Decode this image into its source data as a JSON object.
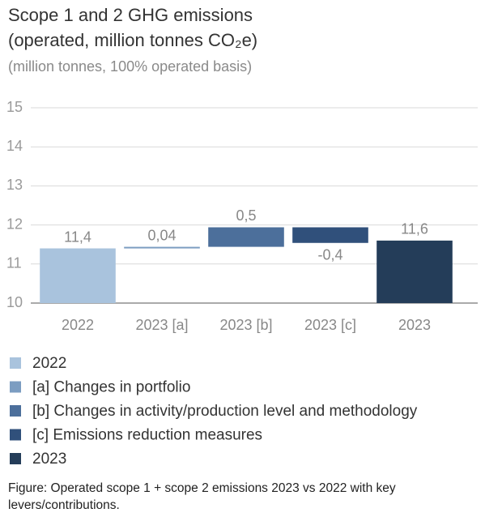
{
  "chart_data": {
    "type": "waterfall",
    "title": [
      "Scope 1 and 2 GHG emissions",
      "(operated, million tonnes CO₂e)"
    ],
    "subtitle": "(million tonnes, 100% operated basis)",
    "categories": [
      "2022",
      "2023 [a]",
      "2023 [b]",
      "2023 [c]",
      "2023"
    ],
    "values": [
      11.4,
      0.04,
      0.5,
      -0.4,
      11.6
    ],
    "value_labels": [
      "11,4",
      "0,04",
      "0,5",
      "-0,4",
      "11,6"
    ],
    "measure": [
      "absolute",
      "relative",
      "relative",
      "relative",
      "total"
    ],
    "legend": [
      {
        "name": "2022",
        "color": "#a9c3dd"
      },
      {
        "name": "[a] Changes in portfolio",
        "color": "#7c9dc1"
      },
      {
        "name": "[b] Changes in activity/production level and methodology",
        "color": "#4c6f9b"
      },
      {
        "name": "[c] Emissions reduction measures",
        "color": "#30507b"
      },
      {
        "name": "2023",
        "color": "#243d59"
      }
    ],
    "ylim": [
      10,
      15
    ],
    "yticks": [
      10,
      11,
      12,
      13,
      14,
      15
    ],
    "grid": true,
    "caption": "Figure: Operated scope 1 + scope 2 emissions 2023 vs 2022 with key levers/contributions."
  }
}
